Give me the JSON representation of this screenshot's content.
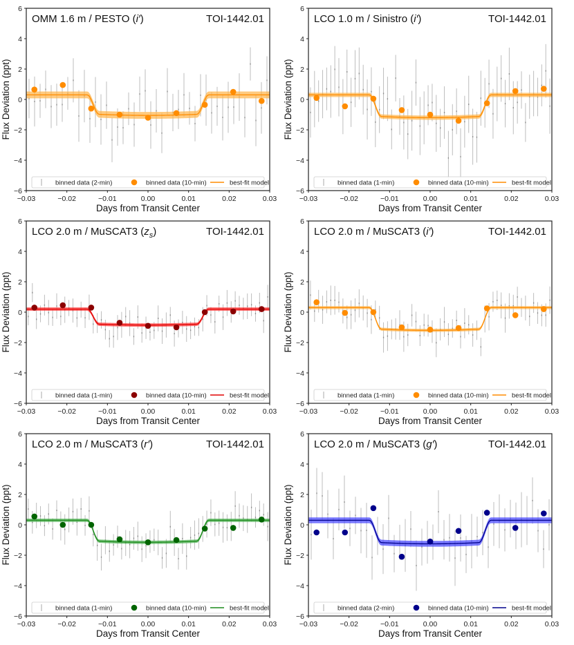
{
  "figure": {
    "xlabel": "Days from Transit Center",
    "ylabel": "Flux Deviation (ppt)",
    "xlim": [
      -0.03,
      0.03
    ],
    "ylim": [
      -6,
      6
    ],
    "xticks": [
      -0.03,
      -0.02,
      -0.01,
      0.0,
      0.01,
      0.02,
      0.03
    ],
    "xtick_labels": [
      "−0.03",
      "−0.02",
      "−0.01",
      "0.00",
      "0.01",
      "0.02",
      "0.03"
    ],
    "yticks": [
      -6,
      -4,
      -2,
      0,
      2,
      4,
      6
    ],
    "ytick_labels": [
      "−6",
      "−4",
      "−2",
      "0",
      "2",
      "4",
      "6"
    ]
  },
  "chart_data": [
    {
      "type": "scatter",
      "title": "OMM 1.6 m / PESTO (i′)",
      "target": "TOI-1442.01",
      "color": "#ff8c00",
      "band_color": "#ffb347",
      "band_width": 0.45,
      "model": {
        "baseline": 0.3,
        "depth": 1.35,
        "t_ingress": 0.0135,
        "ingress_dur": 0.003
      },
      "legend": [
        "binned data (2-min)",
        "binned data (10-min)",
        "best-fit model"
      ],
      "binned_10min": {
        "x": [
          -0.028,
          -0.021,
          -0.014,
          -0.007,
          0.0,
          0.007,
          0.014,
          0.021,
          0.028
        ],
        "y": [
          0.65,
          0.95,
          -0.6,
          -1.0,
          -1.2,
          -0.9,
          -0.35,
          0.5,
          -0.1
        ]
      },
      "binned_fine": {
        "seed": 11,
        "scatter": 1.6,
        "err": 1.4,
        "count": 44
      }
    },
    {
      "type": "scatter",
      "title": "LCO 1.0 m / Sinistro (i′)",
      "target": "TOI-1442.01",
      "color": "#ff8c00",
      "band_color": "#ffb347",
      "band_width": 0.28,
      "model": {
        "baseline": 0.3,
        "depth": 1.5,
        "t_ingress": 0.0135,
        "ingress_dur": 0.003
      },
      "legend": [
        "binned data (1-min)",
        "binned data (10-min)",
        "best-fit model"
      ],
      "binned_10min": {
        "x": [
          -0.028,
          -0.021,
          -0.014,
          -0.007,
          0.0,
          0.007,
          0.014,
          0.021,
          0.028
        ],
        "y": [
          0.1,
          -0.45,
          0.05,
          -0.7,
          -1.0,
          -1.4,
          -0.25,
          0.55,
          0.7
        ]
      },
      "binned_fine": {
        "seed": 23,
        "scatter": 1.9,
        "err": 1.6,
        "count": 60
      }
    },
    {
      "type": "scatter",
      "title": "LCO 2.0 m / MuSCAT3 (z_s)",
      "target": "TOI-1442.01",
      "color": "#8b0000",
      "band_color": "#ff3030",
      "line_color": "#e00000",
      "band_width": 0.22,
      "model": {
        "baseline": 0.2,
        "depth": 1.05,
        "t_ingress": 0.0135,
        "ingress_dur": 0.003
      },
      "legend": [
        "binned data (1-min)",
        "binned data (10-min)",
        "best-fit model"
      ],
      "binned_10min": {
        "x": [
          -0.028,
          -0.021,
          -0.014,
          -0.007,
          0.0,
          0.007,
          0.014,
          0.021,
          0.028
        ],
        "y": [
          0.3,
          0.45,
          0.3,
          -0.7,
          -0.9,
          -1.0,
          0.0,
          0.05,
          0.2
        ]
      },
      "binned_fine": {
        "seed": 37,
        "scatter": 0.8,
        "err": 0.7,
        "count": 60
      }
    },
    {
      "type": "scatter",
      "title": "LCO 2.0 m / MuSCAT3 (i′)",
      "target": "TOI-1442.01",
      "color": "#ff8c00",
      "band_color": "#ffb347",
      "band_width": 0.2,
      "model": {
        "baseline": 0.3,
        "depth": 1.5,
        "t_ingress": 0.0135,
        "ingress_dur": 0.003
      },
      "legend": [
        "binned data (1-min)",
        "binned data (10-min)",
        "best-fit model"
      ],
      "binned_10min": {
        "x": [
          -0.028,
          -0.021,
          -0.014,
          -0.007,
          0.0,
          0.007,
          0.014,
          0.021,
          0.028
        ],
        "y": [
          0.65,
          -0.05,
          0.0,
          -1.0,
          -1.15,
          -1.05,
          0.25,
          -0.2,
          0.2
        ]
      },
      "binned_fine": {
        "seed": 41,
        "scatter": 0.9,
        "err": 0.8,
        "count": 60
      }
    },
    {
      "type": "scatter",
      "title": "LCO 2.0 m / MuSCAT3 (r′)",
      "target": "TOI-1442.01",
      "color": "#006400",
      "band_color": "#4caf50",
      "line_color": "#1a8a1a",
      "band_width": 0.22,
      "model": {
        "baseline": 0.3,
        "depth": 1.45,
        "t_ingress": 0.0135,
        "ingress_dur": 0.003
      },
      "legend": [
        "binned data (1-min)",
        "binned data (10-min)",
        "best-fit model"
      ],
      "binned_10min": {
        "x": [
          -0.028,
          -0.021,
          -0.014,
          -0.007,
          0.0,
          0.007,
          0.014,
          0.021,
          0.028
        ],
        "y": [
          0.55,
          0.0,
          0.0,
          -0.95,
          -1.15,
          -1.0,
          -0.25,
          -0.2,
          0.35
        ]
      },
      "binned_fine": {
        "seed": 53,
        "scatter": 0.95,
        "err": 0.85,
        "count": 60
      }
    },
    {
      "type": "scatter",
      "title": "LCO 2.0 m / MuSCAT3 (g′)",
      "target": "TOI-1442.01",
      "color": "#00008b",
      "band_color": "#4040ff",
      "line_color": "#00008b",
      "band_width": 0.38,
      "model": {
        "baseline": 0.3,
        "depth": 1.55,
        "t_ingress": 0.0135,
        "ingress_dur": 0.003
      },
      "legend": [
        "binned data (2-min)",
        "binned data (10-min)",
        "best-fit model"
      ],
      "binned_10min": {
        "x": [
          -0.028,
          -0.021,
          -0.014,
          -0.007,
          0.0,
          0.007,
          0.014,
          0.021,
          0.028
        ],
        "y": [
          -0.5,
          -0.5,
          1.1,
          -2.1,
          -1.1,
          -0.4,
          0.8,
          -0.2,
          0.75
        ]
      },
      "binned_fine": {
        "seed": 67,
        "scatter": 1.7,
        "err": 1.5,
        "count": 44
      }
    }
  ]
}
